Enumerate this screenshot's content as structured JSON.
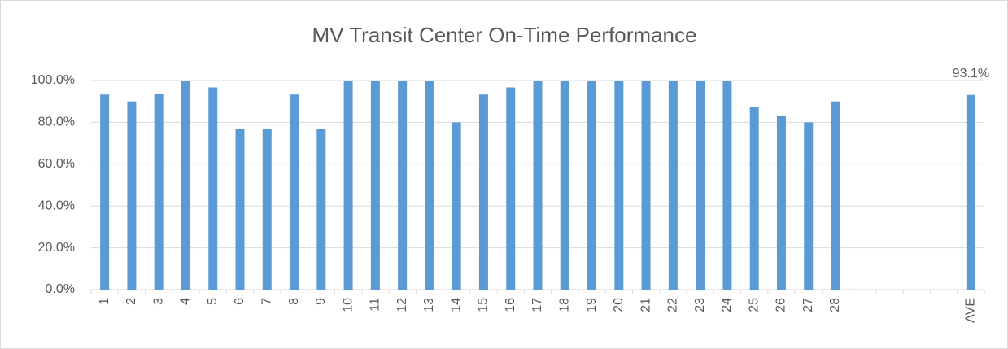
{
  "chart_data": {
    "type": "bar",
    "title": "MV Transit Center On-Time Performance",
    "categories": [
      "1",
      "2",
      "3",
      "4",
      "5",
      "6",
      "7",
      "8",
      "9",
      "10",
      "11",
      "12",
      "13",
      "14",
      "15",
      "16",
      "17",
      "18",
      "19",
      "20",
      "21",
      "22",
      "23",
      "24",
      "25",
      "26",
      "27",
      "28",
      null,
      null,
      null,
      null,
      "AVE"
    ],
    "values": [
      93.3,
      90,
      93.8,
      100,
      96.7,
      76.7,
      76.7,
      93.3,
      76.7,
      100,
      100,
      100,
      100,
      80,
      93.3,
      96.7,
      100,
      100,
      100,
      100,
      100,
      100,
      100,
      100,
      87.5,
      83.3,
      80,
      90,
      null,
      null,
      null,
      null,
      93.1
    ],
    "value_labels": [
      null,
      null,
      null,
      null,
      null,
      null,
      null,
      null,
      null,
      null,
      null,
      null,
      null,
      null,
      null,
      null,
      null,
      null,
      null,
      null,
      null,
      null,
      null,
      null,
      null,
      null,
      null,
      null,
      null,
      null,
      null,
      null,
      "93.1%"
    ],
    "color": "#5b9bd5",
    "ylim": [
      0,
      100
    ],
    "yticks": [
      {
        "value": 0,
        "label": "0.0%"
      },
      {
        "value": 20,
        "label": "20.0%"
      },
      {
        "value": 40,
        "label": "40.0%"
      },
      {
        "value": 60,
        "label": "60.0%"
      },
      {
        "value": 80,
        "label": "80.0%"
      },
      {
        "value": 100,
        "label": "100.0%"
      }
    ],
    "grid": true
  }
}
